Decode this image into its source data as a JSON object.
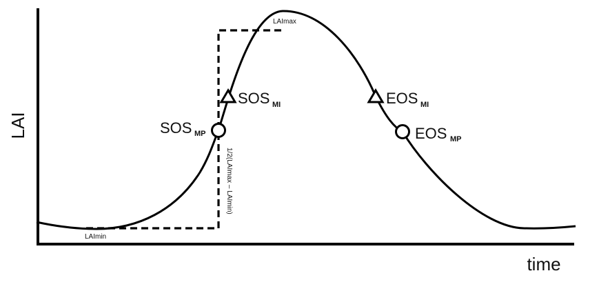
{
  "axes": {
    "y_label": "LAI",
    "x_label": "time"
  },
  "levels": {
    "max_label": "LAImax",
    "min_label": "LAImin",
    "half_amplitude_label": "1/2(LAImax – LAImin)"
  },
  "markers": {
    "sos_mi": {
      "main": "SOS",
      "sub": "MI",
      "shape": "triangle"
    },
    "sos_mp": {
      "main": "SOS",
      "sub": "MP",
      "shape": "circle"
    },
    "eos_mi": {
      "main": "EOS",
      "sub": "MI",
      "shape": "triangle"
    },
    "eos_mp": {
      "main": "EOS",
      "sub": "MP",
      "shape": "circle"
    }
  },
  "colors": {
    "line": "#000000",
    "background": "#ffffff"
  }
}
